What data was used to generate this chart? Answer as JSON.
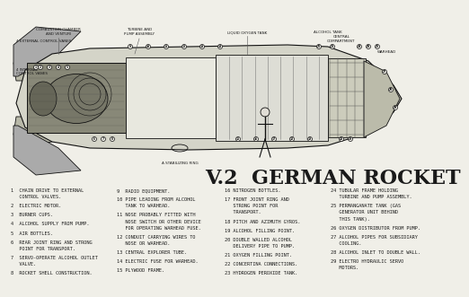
{
  "bg_color": "#f0efe8",
  "title": "V.2  GERMAN ROCKET",
  "title_fontsize": 16,
  "title_weight": "bold",
  "text_color": "#1a1a1a",
  "legend_items_col1": [
    "1  CHAIN DRIVE TO EXTERNAL",
    "   CONTROL VALVES.",
    "",
    "2  ELECTRIC MOTOR.",
    "",
    "3  BURNER CUPS.",
    "",
    "4  ALCOHOL SUPPLY FROM PUMP.",
    "",
    "5  AIR BOTTLES.",
    "",
    "6  REAR JOINT RING AND STRONG",
    "   POINT FOR TRANSPORT.",
    "",
    "7  SERVO-OPERATE ALCOHOL OUTLET",
    "   VALVE.",
    "",
    "8  ROCKET SHELL CONSTRUCTION."
  ],
  "legend_items_col2": [
    "9  RADIO EQUIPMENT.",
    "",
    "10 PIPE LEADING FROM ALCOHOL",
    "   TANK TO WARHEAD.",
    "",
    "11 NOSE PROBABLY FITTED WITH",
    "   NOSE SWITCH OR OTHER DEVICE",
    "   FOR OPERATING WARHEAD FUSE.",
    "",
    "12 CONDUIT CARRYING WIRES TO",
    "   NOSE OR WARHEAD.",
    "",
    "13 CENTRAL EXPLORER TUBE.",
    "",
    "14 ELECTRIC FUSE FOR WARHEAD.",
    "",
    "15 PLYWOOD FRAME."
  ],
  "legend_items_col3": [
    "16 NITROGEN BOTTLES.",
    "",
    "17 FRONT JOINT RING AND",
    "   STRONG POINT FOR",
    "   TRANSPORT.",
    "",
    "18 PITCH AND AZIMUTH GYROS.",
    "",
    "19 ALCOHOL FILLING POINT.",
    "",
    "20 DOUBLE WALLED ALCOHOL",
    "   DELIVERY PIPE TO PUMP.",
    "",
    "21 OXYGEN FILLING POINT.",
    "",
    "22 CONCERTINA CONNECTIONS.",
    "",
    "23 HYDROGEN PEROXIDE TANK."
  ],
  "legend_items_col4": [
    "24 TUBULAR FRAME HOLDING",
    "   TURBINE AND PUMP ASSEMBLY.",
    "",
    "25 PERMANGANATE TANK (GAS",
    "   GENERATOR UNIT BEHIND",
    "   THIS TANK).",
    "",
    "26 OXYGEN DISTRIBUTOR FROM PUMP.",
    "",
    "27 ALCOHOL PIPES FOR SUBSIDIARY",
    "   COOLING.",
    "",
    "28 ALCOHOL INLET TO DOUBLE WALL.",
    "",
    "29 ELECTRO HYDRAULIC SERVO",
    "   MOTORS."
  ]
}
